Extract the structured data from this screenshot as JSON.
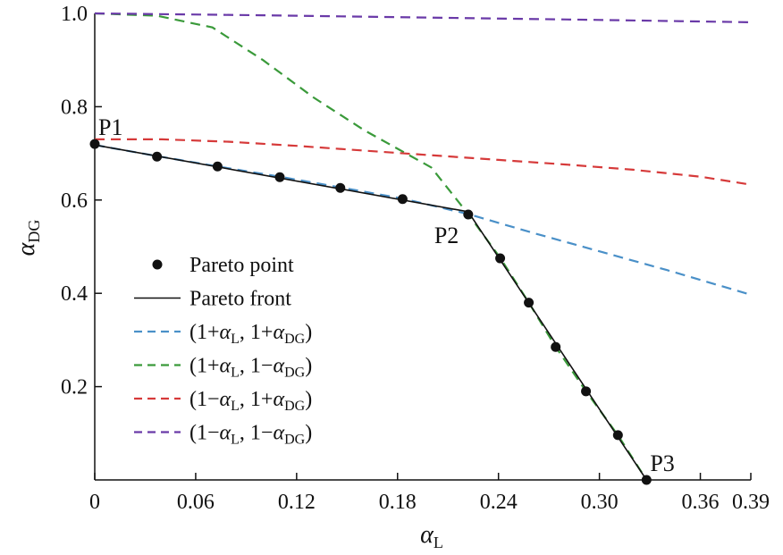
{
  "chart_data": {
    "type": "line",
    "title": "",
    "xlabel": {
      "base": "α",
      "sub": "L"
    },
    "ylabel": {
      "base": "α",
      "sub": "DG"
    },
    "xlim": [
      0,
      0.39
    ],
    "ylim": [
      0,
      1.0
    ],
    "xticks": [
      0,
      0.06,
      0.12,
      0.18,
      0.24,
      0.3,
      0.36,
      0.39
    ],
    "xtick_labels": [
      "0",
      "0.06",
      "0.12",
      "0.18",
      "0.24",
      "0.30",
      "0.36",
      "0.39"
    ],
    "yticks": [
      0.2,
      0.4,
      0.6,
      0.8,
      1.0
    ],
    "ytick_labels": [
      "0.2",
      "0.4",
      "0.6",
      "0.8",
      "1.0"
    ],
    "grid": false,
    "legend_position": "middle-left",
    "series": [
      {
        "name": "(1+α_L, 1+α_DG)",
        "legend_parts": [
          "(1+",
          "α",
          "L",
          ", 1+",
          "α",
          "DG",
          ")"
        ],
        "style": "dashed",
        "color": "#4a90c8",
        "x": [
          0,
          0.039,
          0.073,
          0.11,
          0.146,
          0.183,
          0.222,
          0.26,
          0.3,
          0.34,
          0.39
        ],
        "y": [
          0.718,
          0.693,
          0.672,
          0.65,
          0.627,
          0.603,
          0.57,
          0.53,
          0.49,
          0.45,
          0.397
        ]
      },
      {
        "name": "(1+α_L, 1−α_DG)",
        "legend_parts": [
          "(1+",
          "α",
          "L",
          ", 1−",
          "α",
          "DG",
          ")"
        ],
        "style": "dashed",
        "color": "#3a9a3a",
        "x": [
          0,
          0.037,
          0.07,
          0.1,
          0.13,
          0.16,
          0.2,
          0.222,
          0.241,
          0.258,
          0.274,
          0.292,
          0.311,
          0.328
        ],
        "y": [
          1.0,
          0.995,
          0.97,
          0.9,
          0.82,
          0.75,
          0.67,
          0.57,
          0.476,
          0.38,
          0.285,
          0.19,
          0.096,
          0.0
        ]
      },
      {
        "name": "(1−α_L, 1+α_DG)",
        "legend_parts": [
          "(1−",
          "α",
          "L",
          ", 1+",
          "α",
          "DG",
          ")"
        ],
        "style": "dashed",
        "color": "#d63a3a",
        "x": [
          0,
          0.04,
          0.08,
          0.12,
          0.16,
          0.2,
          0.24,
          0.28,
          0.32,
          0.36,
          0.39
        ],
        "y": [
          0.73,
          0.73,
          0.725,
          0.716,
          0.706,
          0.696,
          0.686,
          0.676,
          0.665,
          0.65,
          0.633
        ]
      },
      {
        "name": "(1−α_L, 1−α_DG)",
        "legend_parts": [
          "(1−",
          "α",
          "L",
          ", 1−",
          "α",
          "DG",
          ")"
        ],
        "style": "dashed",
        "color": "#6a3aa8",
        "x": [
          0,
          0.1,
          0.2,
          0.3,
          0.39
        ],
        "y": [
          1.0,
          0.996,
          0.991,
          0.986,
          0.981
        ]
      },
      {
        "name": "Pareto front",
        "legend_parts": [
          "Pareto front"
        ],
        "style": "solid",
        "color": "#111111",
        "x": [
          0,
          0.222,
          0.328
        ],
        "y": [
          0.718,
          0.575,
          0.0
        ]
      },
      {
        "name": "Pareto point",
        "legend_parts": [
          "Pareto point"
        ],
        "style": "markers",
        "color": "#111111",
        "x": [
          0,
          0.037,
          0.073,
          0.11,
          0.146,
          0.183,
          0.222,
          0.241,
          0.258,
          0.274,
          0.292,
          0.311,
          0.328
        ],
        "y": [
          0.72,
          0.693,
          0.672,
          0.649,
          0.626,
          0.602,
          0.569,
          0.475,
          0.38,
          0.285,
          0.19,
          0.096,
          0.0
        ]
      }
    ],
    "legend_order": [
      "Pareto point",
      "Pareto front",
      "(1+α_L, 1+α_DG)",
      "(1+α_L, 1−α_DG)",
      "(1−α_L, 1+α_DG)",
      "(1−α_L, 1−α_DG)"
    ],
    "annotations": [
      {
        "text": "P1",
        "x": 0,
        "y": 0.72,
        "anchor": "above-right"
      },
      {
        "text": "P2",
        "x": 0.222,
        "y": 0.569,
        "anchor": "below-left"
      },
      {
        "text": "P3",
        "x": 0.328,
        "y": 0.0,
        "anchor": "above-right"
      }
    ]
  }
}
